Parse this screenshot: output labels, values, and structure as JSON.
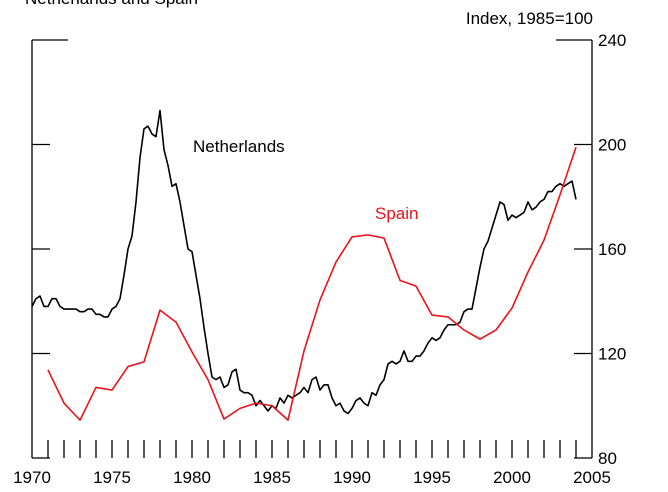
{
  "chart_data": {
    "type": "line",
    "title": "Netherlands and Spain",
    "y_axis_label": "Index, 1985=100",
    "xlim": [
      1970,
      2005
    ],
    "xticks": [
      1970,
      1975,
      1980,
      1985,
      1990,
      1995,
      2000,
      2005
    ],
    "minor_xticks": [
      1971,
      1972,
      1973,
      1974,
      1975,
      1976,
      1977,
      1978,
      1979,
      1980,
      1981,
      1982,
      1983,
      1984,
      1985,
      1986,
      1987,
      1988,
      1989,
      1990,
      1991,
      1992,
      1993,
      1994,
      1995,
      1996,
      1997,
      1998,
      1999,
      2000,
      2001,
      2002,
      2003,
      2004
    ],
    "ylim": [
      80,
      240
    ],
    "yticks": [
      80,
      120,
      160,
      200,
      240
    ],
    "series": [
      {
        "name": "Netherlands",
        "color": "#000000",
        "x": [
          1970,
          1970.25,
          1970.5,
          1970.75,
          1971,
          1971.25,
          1971.5,
          1971.75,
          1972,
          1972.25,
          1972.5,
          1972.75,
          1973,
          1973.25,
          1973.5,
          1973.75,
          1974,
          1974.25,
          1974.5,
          1974.75,
          1975,
          1975.25,
          1975.5,
          1975.75,
          1976,
          1976.25,
          1976.5,
          1976.75,
          1977,
          1977.25,
          1977.5,
          1977.75,
          1978,
          1978.25,
          1978.5,
          1978.75,
          1979,
          1979.25,
          1979.5,
          1979.75,
          1980,
          1980.25,
          1980.5,
          1980.75,
          1981,
          1981.25,
          1981.5,
          1981.75,
          1982,
          1982.25,
          1982.5,
          1982.75,
          1983,
          1983.25,
          1983.5,
          1983.75,
          1984,
          1984.25,
          1984.5,
          1984.75,
          1985,
          1985.25,
          1985.5,
          1985.75,
          1986,
          1986.25,
          1986.5,
          1986.75,
          1987,
          1987.25,
          1987.5,
          1987.75,
          1988,
          1988.25,
          1988.5,
          1988.75,
          1989,
          1989.25,
          1989.5,
          1989.75,
          1990,
          1990.25,
          1990.5,
          1990.75,
          1991,
          1991.25,
          1991.5,
          1991.75,
          1992,
          1992.25,
          1992.5,
          1992.75,
          1993,
          1993.25,
          1993.5,
          1993.75,
          1994,
          1994.25,
          1994.5,
          1994.75,
          1995,
          1995.25,
          1995.5,
          1995.75,
          1996,
          1996.25,
          1996.5,
          1996.75,
          1997,
          1997.25,
          1997.5,
          1997.75,
          1998,
          1998.25,
          1998.5,
          1998.75,
          1999,
          1999.25,
          1999.5,
          1999.75,
          2000,
          2000.25,
          2000.5,
          2000.75,
          2001,
          2001.25,
          2001.5,
          2001.75,
          2002,
          2002.25,
          2002.5,
          2002.75,
          2003,
          2003.25,
          2003.5,
          2003.75,
          2004
        ],
        "values": [
          138,
          141,
          142,
          138,
          138,
          141,
          141,
          138,
          137,
          137,
          137,
          137,
          136,
          136,
          137,
          137,
          135,
          135,
          134,
          134,
          137,
          138,
          141,
          150,
          160,
          165,
          178,
          195,
          206,
          207,
          204,
          203,
          213,
          198,
          192,
          184,
          185,
          178,
          169,
          160,
          159,
          150,
          141,
          130,
          120,
          111,
          110,
          111,
          107,
          108,
          113,
          114,
          106,
          105,
          105,
          104,
          100,
          102,
          100,
          98,
          100,
          99,
          103,
          101,
          104,
          103,
          104,
          105,
          107,
          105,
          110,
          111,
          106,
          108,
          108,
          103,
          100,
          101,
          98,
          97,
          99,
          102,
          103,
          101,
          100,
          105,
          104,
          108,
          110,
          116,
          117,
          116,
          117,
          121,
          117,
          117,
          119,
          119,
          121,
          124,
          126,
          125,
          126,
          129,
          131,
          131,
          131,
          132,
          136,
          137,
          137,
          145,
          153,
          160,
          163,
          168,
          173,
          178,
          177,
          171,
          173,
          172,
          173,
          174,
          178,
          175,
          176,
          178,
          179,
          182,
          182,
          184,
          185,
          184,
          185,
          186,
          179
        ]
      },
      {
        "name": "Spain",
        "color": "#e8141b",
        "x": [
          1971,
          1972,
          1973,
          1974,
          1975,
          1976,
          1977,
          1978,
          1979,
          1980,
          1981,
          1982,
          1983,
          1984,
          1985,
          1986,
          1987,
          1988,
          1989,
          1990,
          1991,
          1992,
          1993,
          1994,
          1995,
          1996,
          1997,
          1998,
          1999,
          2000,
          2001,
          2002,
          2003,
          2004
        ],
        "values": [
          113.7,
          101,
          94.5,
          107,
          106,
          115,
          116.8,
          136.6,
          132,
          120.6,
          110,
          94.9,
          99,
          101,
          100,
          94.5,
          121,
          140.5,
          155,
          164.6,
          165.4,
          164.2,
          148,
          145.8,
          134.7,
          134,
          129,
          125.5,
          129,
          137.4,
          151.2,
          163.4,
          180.7,
          199
        ]
      }
    ]
  }
}
